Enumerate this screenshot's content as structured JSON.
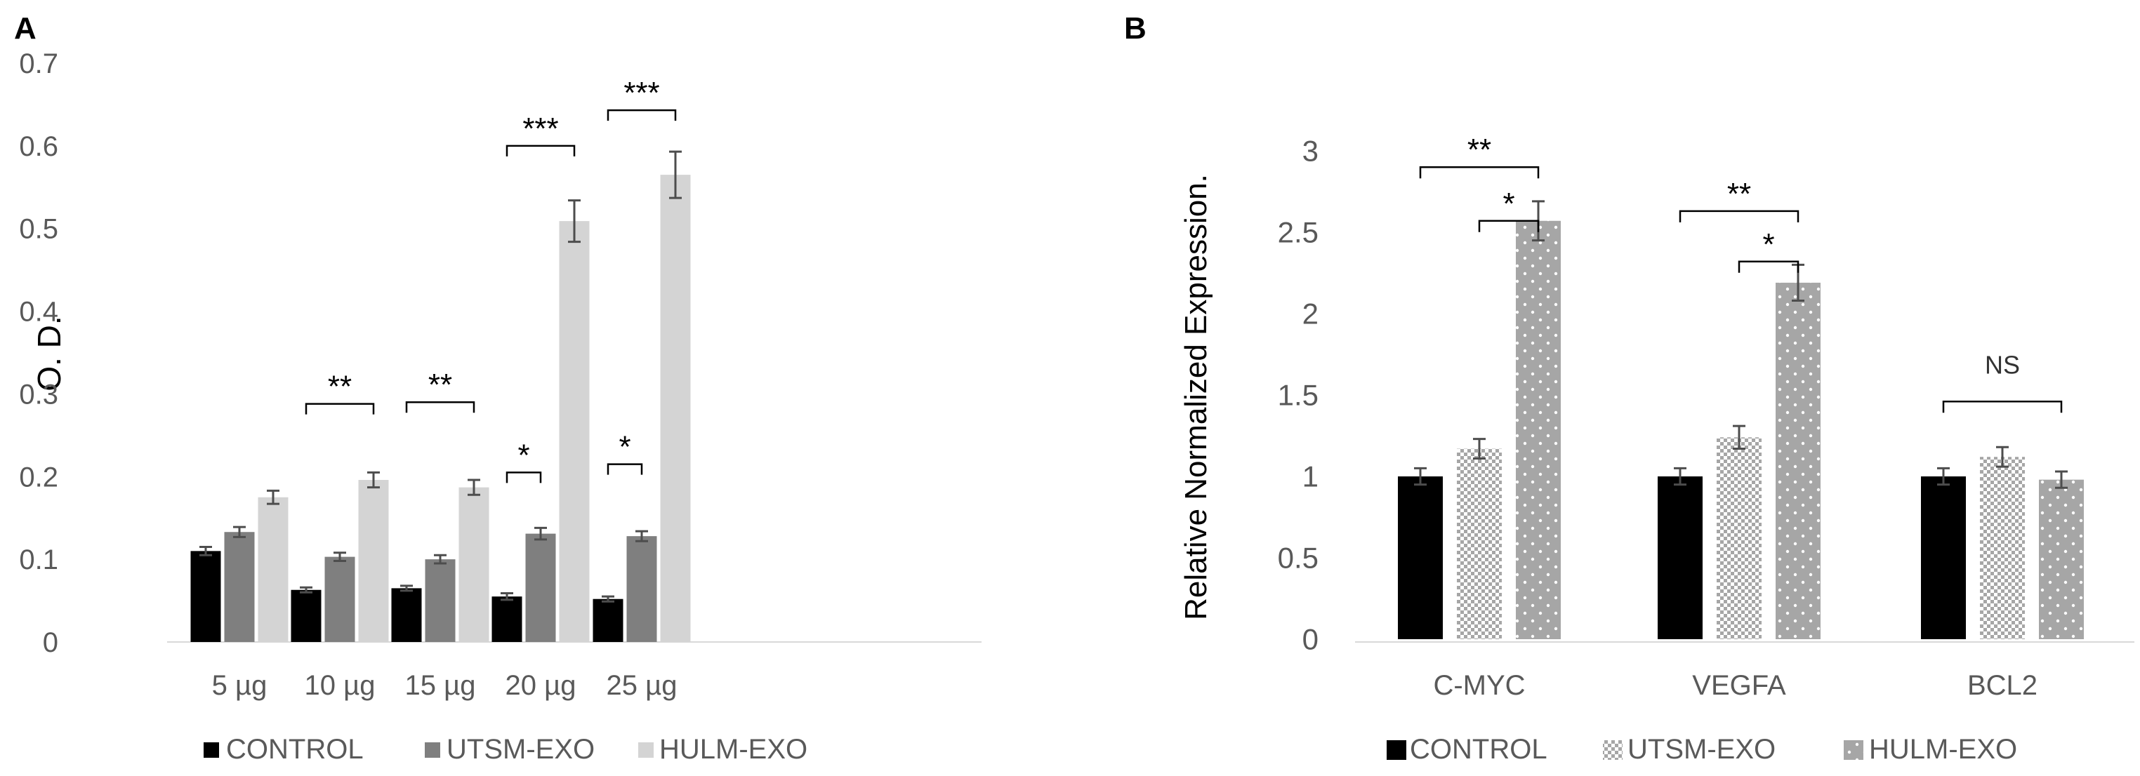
{
  "colors": {
    "control": "#000000",
    "utsm": "#7f7f7f",
    "hulm": "#d4d4d4",
    "patterned_fill": "#a6a6a6",
    "tick_text": "#595959",
    "error_bar": "#4d4d4d"
  },
  "chart_data": [
    {
      "panel_label": "A",
      "type": "bar",
      "title": "",
      "xlabel": "",
      "ylabel": "O. D.",
      "ylim": [
        0,
        0.7
      ],
      "yticks": [
        "0",
        "0.1",
        "0.2",
        "0.3",
        "0.4",
        "0.5",
        "0.6",
        "0.7"
      ],
      "categories": [
        "5 µg",
        "10 µg",
        "15 µg",
        "20 µg",
        "25 µg"
      ],
      "series": [
        {
          "name": "CONTROL",
          "style": "solid-black",
          "values": [
            0.11,
            0.063,
            0.065,
            0.055,
            0.052
          ],
          "errors": [
            0.005,
            0.003,
            0.003,
            0.004,
            0.003
          ]
        },
        {
          "name": "UTSM-EXO",
          "style": "solid-gray",
          "values": [
            0.133,
            0.103,
            0.1,
            0.131,
            0.128
          ],
          "errors": [
            0.006,
            0.005,
            0.005,
            0.007,
            0.006
          ]
        },
        {
          "name": "HULM-EXO",
          "style": "solid-light",
          "values": [
            0.175,
            0.196,
            0.187,
            0.509,
            0.565
          ],
          "errors": [
            0.008,
            0.009,
            0.009,
            0.025,
            0.028
          ]
        }
      ],
      "annotations": [
        {
          "label": "**",
          "category_index": 1,
          "from_series": 0,
          "to_series": 2,
          "level": 0.288
        },
        {
          "label": "**",
          "category_index": 2,
          "from_series": 0,
          "to_series": 2,
          "level": 0.29
        },
        {
          "label": "*",
          "category_index": 3,
          "from_series": 0,
          "to_series": 1,
          "level": 0.205
        },
        {
          "label": "***",
          "category_index": 3,
          "from_series": 0,
          "to_series": 2,
          "level": 0.6
        },
        {
          "label": "*",
          "category_index": 4,
          "from_series": 0,
          "to_series": 1,
          "level": 0.215
        },
        {
          "label": "***",
          "category_index": 4,
          "from_series": 0,
          "to_series": 2,
          "level": 0.643
        }
      ],
      "legend": [
        "CONTROL",
        "UTSM-EXO",
        "HULM-EXO"
      ],
      "legend_position": "bottom"
    },
    {
      "panel_label": "B",
      "type": "bar",
      "title": "",
      "xlabel": "",
      "ylabel": "Relative Normalized Expression.",
      "ylim": [
        0,
        3
      ],
      "yticks": [
        "0",
        "0.5",
        "1",
        "1.5",
        "2",
        "2.5",
        "3"
      ],
      "categories": [
        "C-MYC",
        "VEGFA",
        "BCL2"
      ],
      "series": [
        {
          "name": "CONTROL",
          "style": "solid-black",
          "values": [
            1.0,
            1.0,
            1.0
          ],
          "errors": [
            0.05,
            0.05,
            0.05
          ]
        },
        {
          "name": "UTSM-EXO",
          "style": "checker",
          "values": [
            1.17,
            1.24,
            1.12
          ],
          "errors": [
            0.06,
            0.07,
            0.06
          ]
        },
        {
          "name": "HULM-EXO",
          "style": "dotted",
          "values": [
            2.57,
            2.19,
            0.98
          ],
          "errors": [
            0.12,
            0.11,
            0.05
          ]
        }
      ],
      "annotations": [
        {
          "label": "**",
          "category_index": 0,
          "from_series": 0,
          "to_series": 2,
          "level": 2.9
        },
        {
          "label": "*",
          "category_index": 0,
          "from_series": 1,
          "to_series": 2,
          "level": 2.57
        },
        {
          "label": "**",
          "category_index": 1,
          "from_series": 0,
          "to_series": 2,
          "level": 2.63
        },
        {
          "label": "*",
          "category_index": 1,
          "from_series": 1,
          "to_series": 2,
          "level": 2.32
        },
        {
          "label": "NS",
          "category_index": 2,
          "from_series": 0,
          "to_series": 2,
          "level": 1.46
        }
      ],
      "legend": [
        "CONTROL",
        "UTSM-EXO",
        "HULM-EXO"
      ],
      "legend_position": "bottom"
    }
  ]
}
